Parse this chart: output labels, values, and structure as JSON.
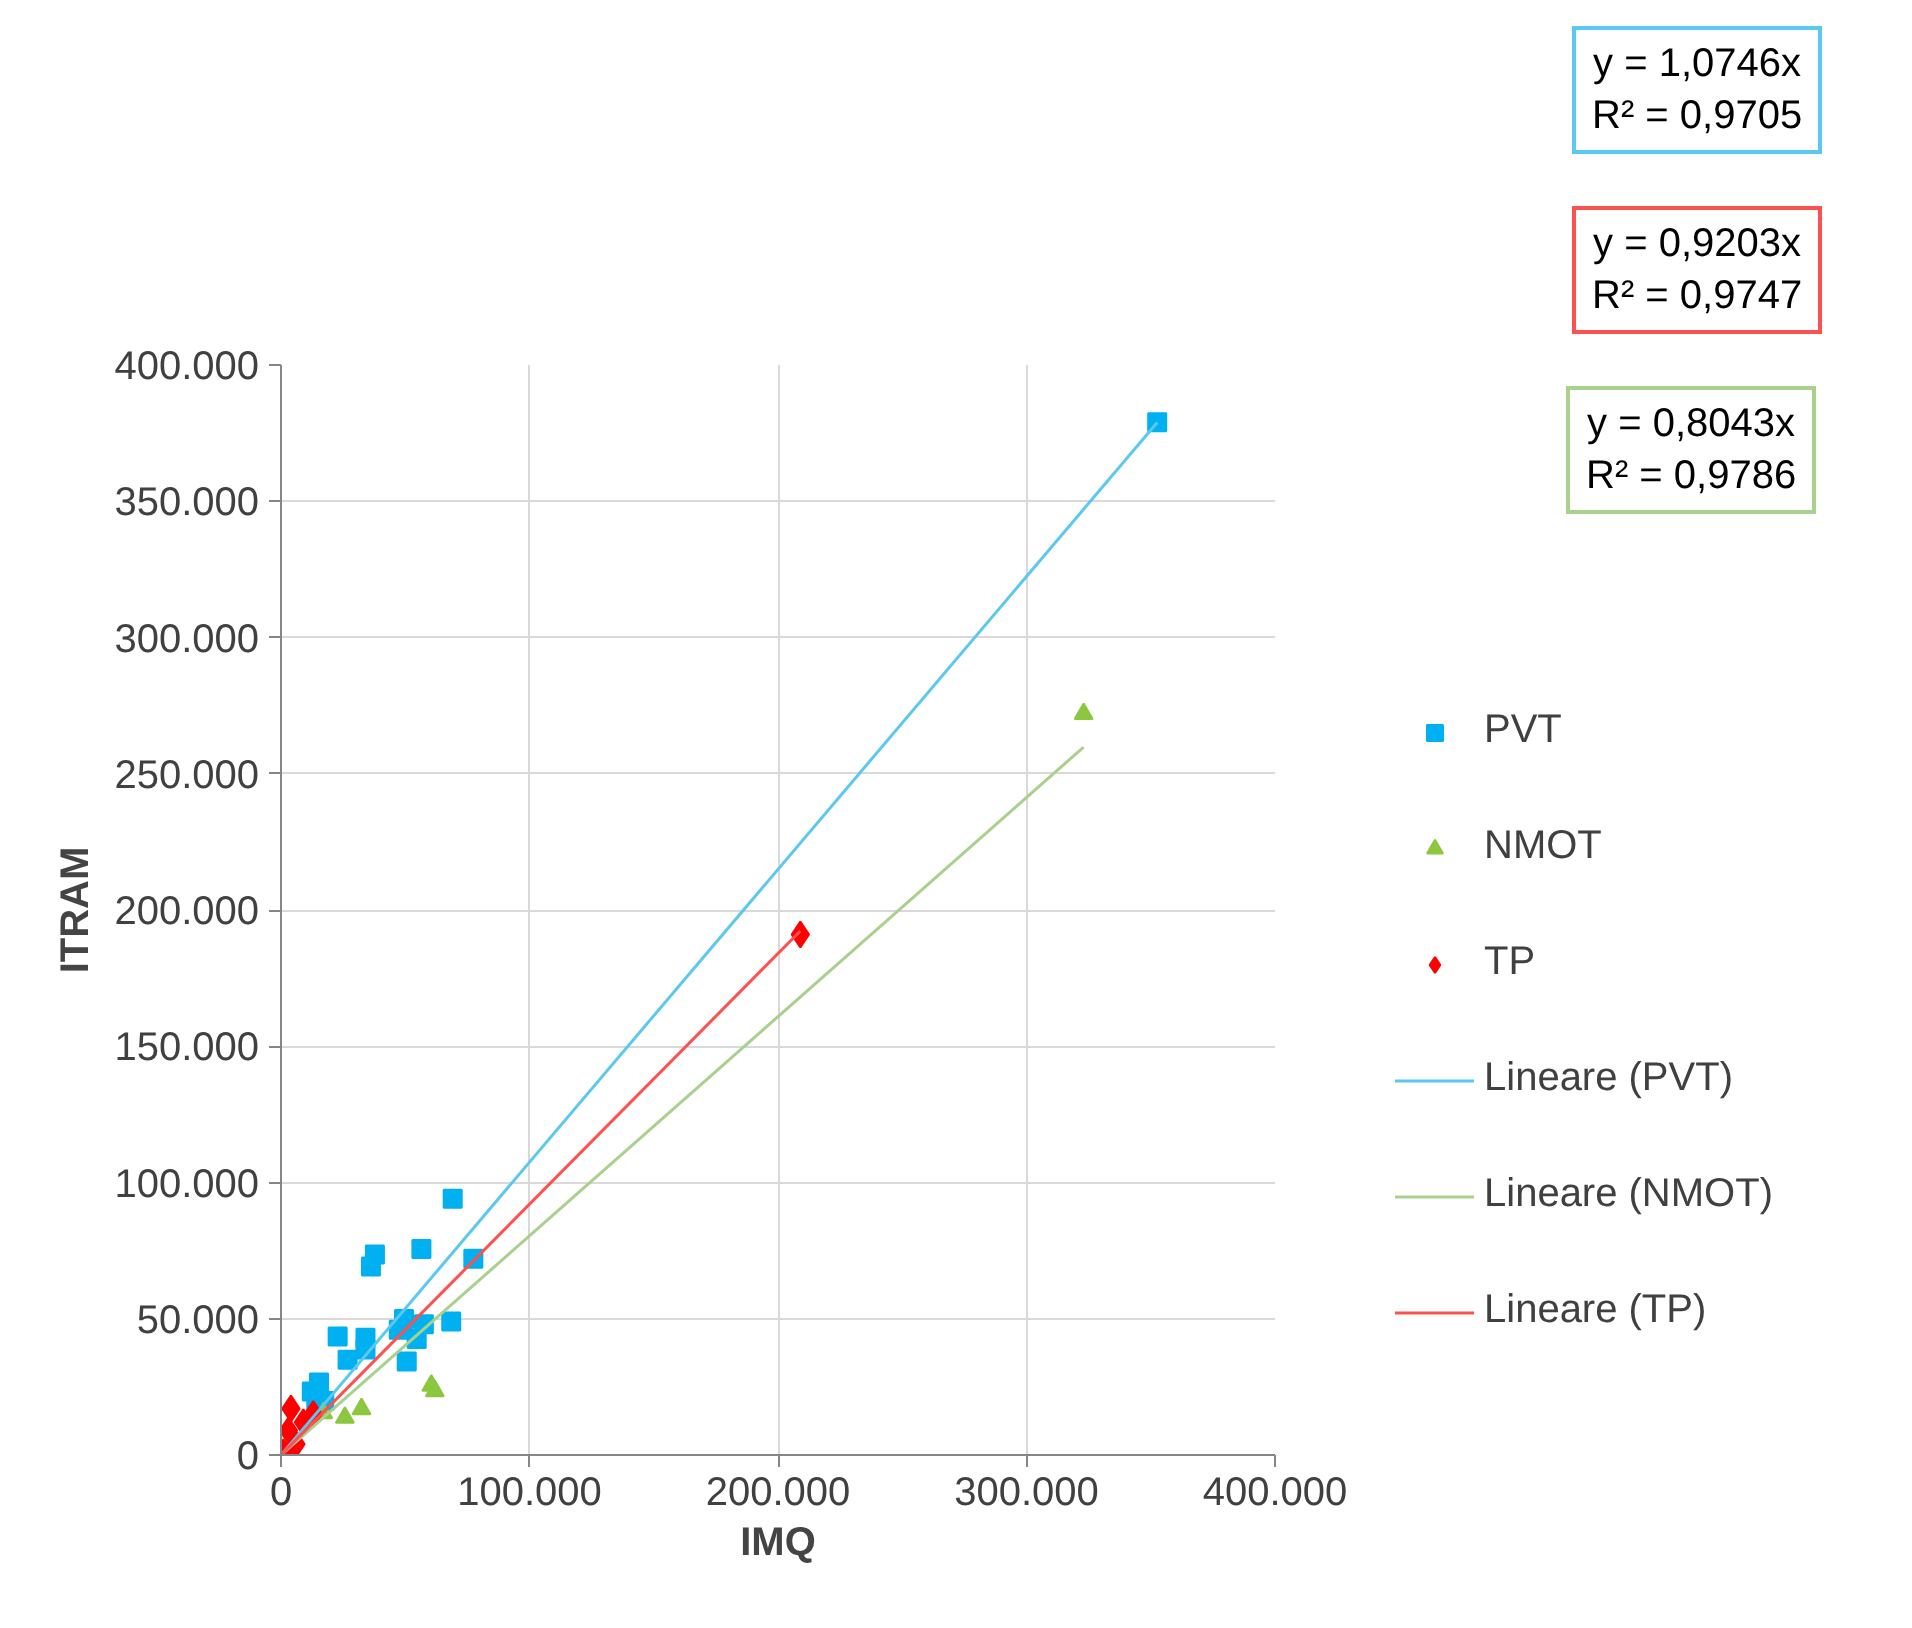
{
  "chart_data": {
    "type": "scatter",
    "xlabel": "IMQ",
    "ylabel": "ITRAM",
    "xlim": [
      0,
      400000
    ],
    "ylim": [
      0,
      400000
    ],
    "xticks": [
      {
        "value": 0,
        "label": "0"
      },
      {
        "value": 100000,
        "label": "100.000"
      },
      {
        "value": 200000,
        "label": "200.000"
      },
      {
        "value": 300000,
        "label": "300.000"
      },
      {
        "value": 400000,
        "label": "400.000"
      }
    ],
    "yticks": [
      {
        "value": 0,
        "label": "0"
      },
      {
        "value": 50000,
        "label": "50.000"
      },
      {
        "value": 100000,
        "label": "100.000"
      },
      {
        "value": 150000,
        "label": "150.000"
      },
      {
        "value": 200000,
        "label": "200.000"
      },
      {
        "value": 250000,
        "label": "250.000"
      },
      {
        "value": 300000,
        "label": "300.000"
      },
      {
        "value": 350000,
        "label": "350.000"
      },
      {
        "value": 400000,
        "label": "400.000"
      }
    ],
    "grid": true,
    "legend": "right",
    "series": [
      {
        "name": "PVT",
        "color": "#00b0f0",
        "marker": "square",
        "x": [
          352600,
          77400,
          69100,
          37800,
          36200,
          56500,
          68500,
          49500,
          47400,
          57500,
          54600,
          50600,
          22800,
          34000,
          34000,
          26800,
          15300,
          12400,
          17400,
          14200
        ],
        "values": [
          379000,
          72000,
          94000,
          73600,
          69200,
          75600,
          49000,
          49900,
          46000,
          48000,
          42600,
          34300,
          43500,
          43000,
          38700,
          35000,
          26600,
          23300,
          19800,
          18600
        ]
      },
      {
        "name": "NMOT",
        "color": "#8dc63f",
        "marker": "triangle",
        "x": [
          323000,
          60500,
          61900,
          32400,
          25700,
          17000
        ],
        "values": [
          272000,
          25500,
          23500,
          16900,
          13700,
          15400
        ]
      },
      {
        "name": "TP",
        "color": "#ff0000",
        "marker": "diamond",
        "x": [
          209000,
          1000,
          3000,
          4000,
          9000,
          13000,
          6000
        ],
        "values": [
          191000,
          1000,
          9000,
          17000,
          12000,
          15000,
          4000
        ]
      },
      {
        "name": "Lineare (PVT)",
        "type": "line",
        "color": "#5bc8f0",
        "marker": "none",
        "x": [
          0,
          352600
        ],
        "values": [
          0,
          378900
        ]
      },
      {
        "name": "Lineare (NMOT)",
        "type": "line",
        "color": "#a9d18e",
        "marker": "none",
        "x": [
          0,
          323000
        ],
        "values": [
          0,
          259800
        ]
      },
      {
        "name": "Lineare (TP)",
        "type": "line",
        "color": "#ff5050",
        "marker": "none",
        "x": [
          0,
          209000
        ],
        "values": [
          0,
          192300
        ]
      }
    ],
    "annotations": [
      "y = 1,0746x\nR² = 0,9705",
      "y = 0,9203x\nR² = 0,9747",
      "y = 0,8043x\nR² = 0,9786"
    ]
  }
}
